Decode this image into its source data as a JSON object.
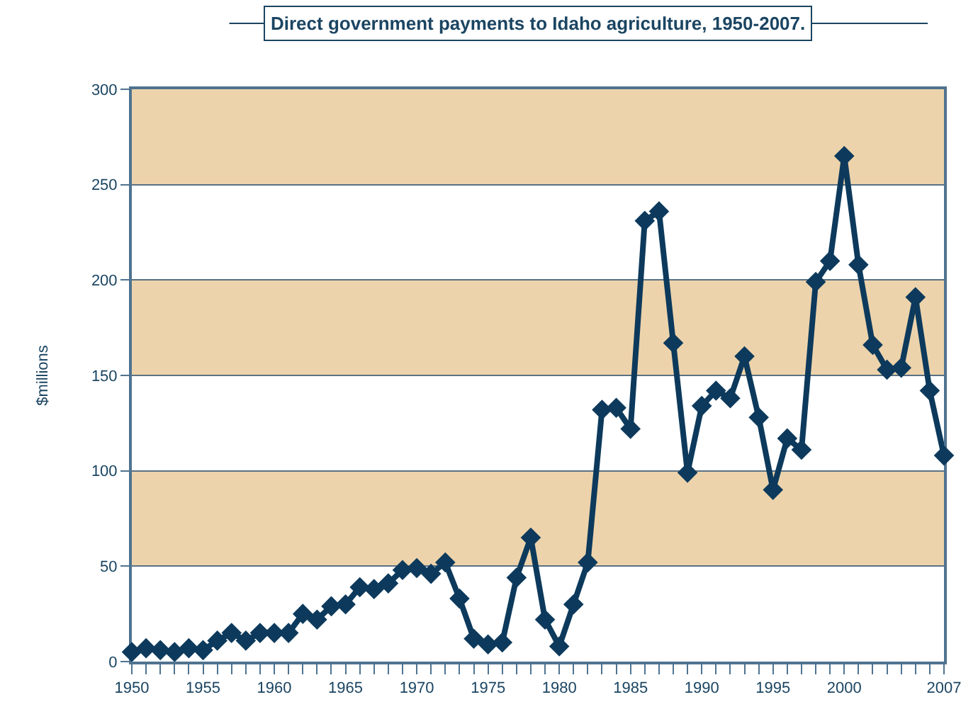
{
  "chart_data": {
    "type": "line",
    "title": "Direct government payments to Idaho agriculture, 1950-2007.",
    "ylabel": "$millions",
    "x": [
      1950,
      1951,
      1952,
      1953,
      1954,
      1955,
      1956,
      1957,
      1958,
      1959,
      1960,
      1961,
      1962,
      1963,
      1964,
      1965,
      1966,
      1967,
      1968,
      1969,
      1970,
      1971,
      1972,
      1973,
      1974,
      1975,
      1976,
      1977,
      1978,
      1979,
      1980,
      1981,
      1982,
      1983,
      1984,
      1985,
      1986,
      1987,
      1988,
      1989,
      1990,
      1991,
      1992,
      1993,
      1994,
      1995,
      1996,
      1997,
      1998,
      1999,
      2000,
      2001,
      2002,
      2003,
      2004,
      2005,
      2006,
      2007
    ],
    "series": [
      {
        "color": "#0d3a5c",
        "values": [
          5,
          7,
          6,
          5,
          7,
          6,
          11,
          15,
          11,
          15,
          15,
          15,
          25,
          22,
          29,
          30,
          39,
          38,
          41,
          48,
          49,
          46,
          52,
          33,
          12,
          9,
          10,
          44,
          65,
          22,
          8,
          30,
          52,
          132,
          133,
          122,
          231,
          236,
          167,
          99,
          134,
          142,
          138,
          160,
          128,
          90,
          117,
          111,
          199,
          210,
          265,
          208,
          166,
          153,
          154,
          191,
          142,
          108
        ]
      }
    ],
    "marker": "diamond",
    "line_style": "solid",
    "grid": "y",
    "xlim": [
      1950,
      2007
    ],
    "xticks": [
      1950,
      {
        "value": 1951,
        "label": null
      },
      {
        "value": 1952,
        "label": null
      },
      {
        "value": 1953,
        "label": null
      },
      {
        "value": 1954,
        "label": null
      },
      1955,
      {
        "value": 1956,
        "label": null
      },
      {
        "value": 1957,
        "label": null
      },
      {
        "value": 1958,
        "label": null
      },
      {
        "value": 1959,
        "label": null
      },
      1960,
      {
        "value": 1961,
        "label": null
      },
      {
        "value": 1962,
        "label": null
      },
      {
        "value": 1963,
        "label": null
      },
      {
        "value": 1964,
        "label": null
      },
      1965,
      {
        "value": 1966,
        "label": null
      },
      {
        "value": 1967,
        "label": null
      },
      {
        "value": 1968,
        "label": null
      },
      {
        "value": 1969,
        "label": null
      },
      1970,
      {
        "value": 1971,
        "label": null
      },
      {
        "value": 1972,
        "label": null
      },
      {
        "value": 1973,
        "label": null
      },
      {
        "value": 1974,
        "label": null
      },
      1975,
      {
        "value": 1976,
        "label": null
      },
      {
        "value": 1977,
        "label": null
      },
      {
        "value": 1978,
        "label": null
      },
      {
        "value": 1979,
        "label": null
      },
      1980,
      {
        "value": 1981,
        "label": null
      },
      {
        "value": 1982,
        "label": null
      },
      {
        "value": 1983,
        "label": null
      },
      {
        "value": 1984,
        "label": null
      },
      1985,
      {
        "value": 1986,
        "label": null
      },
      {
        "value": 1987,
        "label": null
      },
      {
        "value": 1988,
        "label": null
      },
      {
        "value": 1989,
        "label": null
      },
      1990,
      {
        "value": 1991,
        "label": null
      },
      {
        "value": 1992,
        "label": null
      },
      {
        "value": 1993,
        "label": null
      },
      {
        "value": 1994,
        "label": null
      },
      1995,
      {
        "value": 1996,
        "label": null
      },
      {
        "value": 1997,
        "label": null
      },
      {
        "value": 1998,
        "label": null
      },
      {
        "value": 1999,
        "label": null
      },
      2000,
      {
        "value": 2001,
        "label": null
      },
      {
        "value": 2002,
        "label": null
      },
      {
        "value": 2003,
        "label": null
      },
      {
        "value": 2004,
        "label": null
      },
      {
        "value": 2005,
        "label": null
      },
      {
        "value": 2006,
        "label": null
      },
      2007
    ],
    "ylim": [
      0,
      300
    ],
    "yticks": [
      0,
      50,
      100,
      150,
      200,
      250,
      300
    ],
    "bands": [
      {
        "axis": "y",
        "from": 50,
        "to": 100,
        "color": "#edd3ab"
      },
      {
        "axis": "y",
        "from": 150,
        "to": 200,
        "color": "#edd3ab"
      },
      {
        "axis": "y",
        "from": 250,
        "to": 300,
        "color": "#edd3ab"
      }
    ]
  }
}
